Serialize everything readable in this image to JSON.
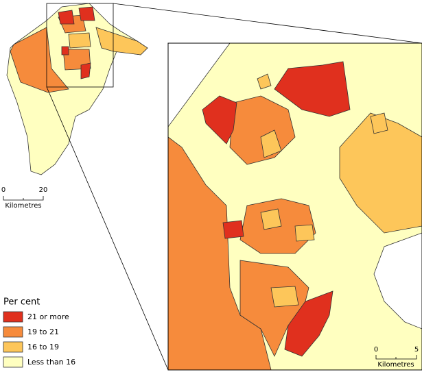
{
  "legend": {
    "title": "Per cent",
    "items": [
      {
        "label": "21 or more",
        "color": "#e0301e"
      },
      {
        "label": "19 to 21",
        "color": "#f68b3c"
      },
      {
        "label": "16 to 19",
        "color": "#fdc65a"
      },
      {
        "label": "Less than 16",
        "color": "#ffffc0"
      }
    ]
  },
  "overview_scale": {
    "ticks": [
      "0",
      "20"
    ],
    "unit": "Kilometres"
  },
  "inset_scale": {
    "ticks": [
      "0",
      "5"
    ],
    "unit": "Kilometres"
  }
}
